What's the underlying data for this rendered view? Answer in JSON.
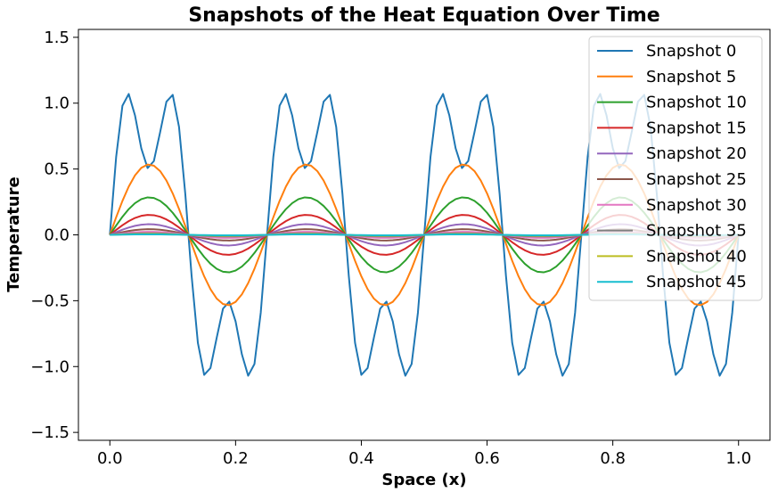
{
  "chart_data": {
    "type": "line",
    "title": "Snapshots of the Heat Equation Over Time",
    "xlabel": "Space (x)",
    "ylabel": "Temperature",
    "xlim": [
      -0.05,
      1.05
    ],
    "ylim": [
      -1.56,
      1.56
    ],
    "xticks": [
      0.0,
      0.2,
      0.4,
      0.6,
      0.8,
      1.0
    ],
    "xtick_labels": [
      "0.0",
      "0.2",
      "0.4",
      "0.6",
      "0.8",
      "1.0"
    ],
    "yticks": [
      -1.5,
      -1.0,
      -0.5,
      0.0,
      0.5,
      1.0,
      1.5
    ],
    "ytick_labels": [
      "−1.5",
      "−1.0",
      "−0.5",
      "0.0",
      "0.5",
      "1.0",
      "1.5"
    ],
    "grid": false,
    "legend_position": "top-right",
    "x_points": 101,
    "series": [
      {
        "name": "Snapshot 0",
        "color": "#1f77b4",
        "amplitude": 1.0
      },
      {
        "name": "Snapshot 5",
        "color": "#ff7f0e",
        "amplitude": 0.535
      },
      {
        "name": "Snapshot 10",
        "color": "#2ca02c",
        "amplitude": 0.285
      },
      {
        "name": "Snapshot 15",
        "color": "#d62728",
        "amplitude": 0.152
      },
      {
        "name": "Snapshot 20",
        "color": "#9467bd",
        "amplitude": 0.081
      },
      {
        "name": "Snapshot 25",
        "color": "#8c564b",
        "amplitude": 0.043
      },
      {
        "name": "Snapshot 30",
        "color": "#e377c2",
        "amplitude": 0.023
      },
      {
        "name": "Snapshot 35",
        "color": "#7f7f7f",
        "amplitude": 0.012
      },
      {
        "name": "Snapshot 40",
        "color": "#bcbd22",
        "amplitude": 0.0066
      },
      {
        "name": "Snapshot 45",
        "color": "#17becf",
        "amplitude": 0.0035
      }
    ],
    "initial_profile": "sin(8*pi*x) + 0.5*sin(24*pi*x)"
  }
}
